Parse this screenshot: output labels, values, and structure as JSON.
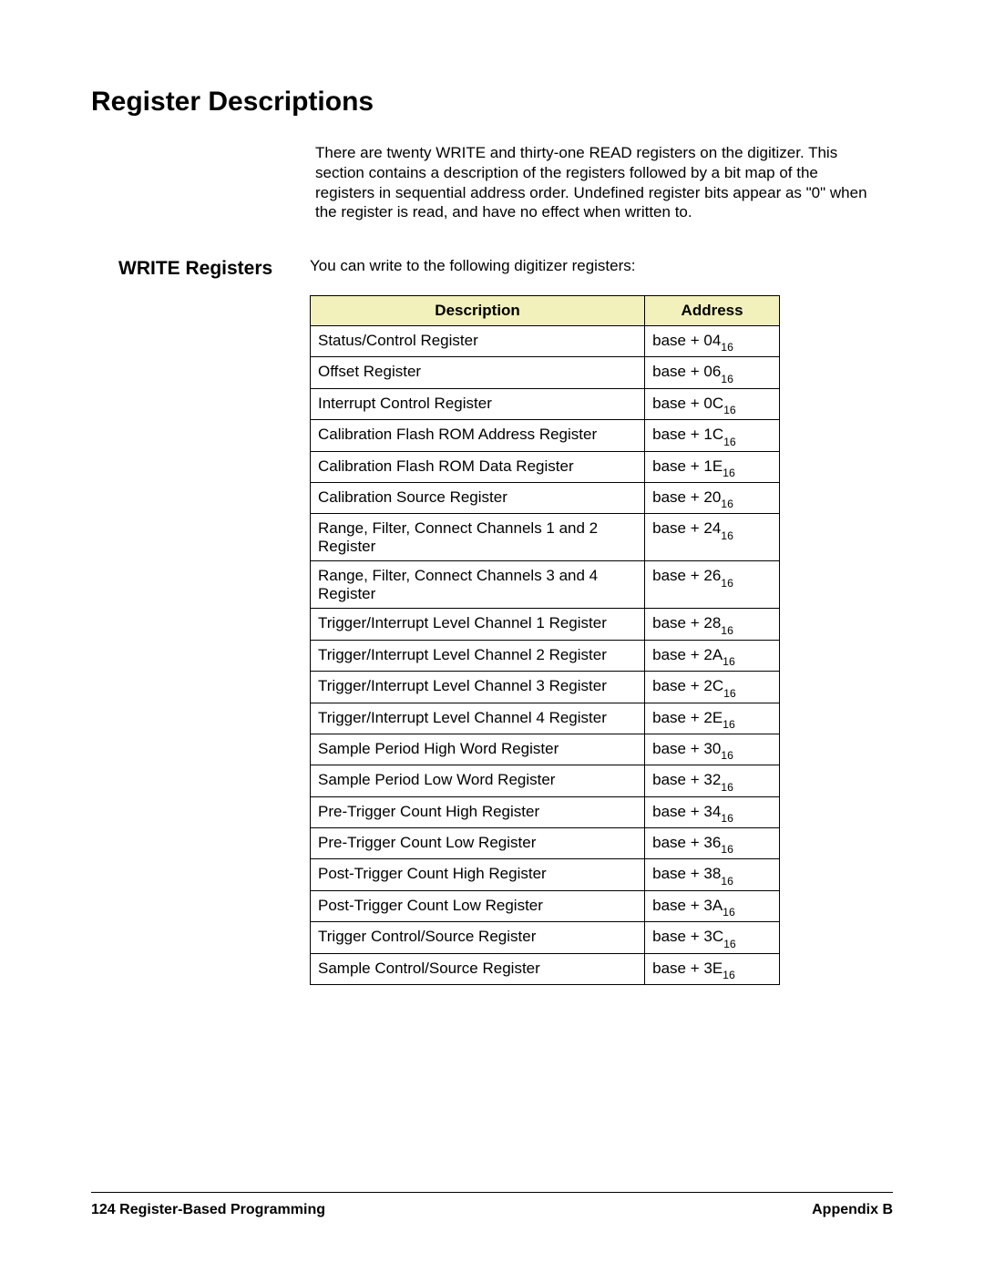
{
  "title": "Register Descriptions",
  "intro": "There are twenty WRITE and thirty-one READ registers on the digitizer. This section contains a description of the registers followed by a bit map of the registers in sequential address order. Undefined register bits appear as \"0\" when the register is read, and have no effect when written to.",
  "section": {
    "label": "WRITE Registers",
    "lead": "You can write to the following digitizer registers:"
  },
  "table": {
    "header_bg": "#f2f0bb",
    "border_color": "#000000",
    "col_desc_width": 368,
    "col_addr_width": 148,
    "columns": [
      "Description",
      "Address"
    ],
    "address_prefix": "base + ",
    "address_subscript": "16",
    "rows": [
      {
        "desc": "Status/Control Register",
        "offset": "04"
      },
      {
        "desc": "Offset Register",
        "offset": "06"
      },
      {
        "desc": "Interrupt Control Register",
        "offset": "0C"
      },
      {
        "desc": "Calibration Flash ROM Address Register",
        "offset": "1C"
      },
      {
        "desc": "Calibration Flash ROM Data Register",
        "offset": "1E"
      },
      {
        "desc": "Calibration Source Register",
        "offset": "20"
      },
      {
        "desc": "Range, Filter, Connect Channels 1 and 2 Register",
        "offset": "24"
      },
      {
        "desc": "Range, Filter, Connect Channels 3 and 4 Register",
        "offset": "26"
      },
      {
        "desc": "Trigger/Interrupt Level Channel 1 Register",
        "offset": "28"
      },
      {
        "desc": "Trigger/Interrupt Level Channel 2 Register",
        "offset": "2A"
      },
      {
        "desc": "Trigger/Interrupt Level Channel 3 Register",
        "offset": "2C"
      },
      {
        "desc": "Trigger/Interrupt Level Channel 4 Register",
        "offset": "2E"
      },
      {
        "desc": "Sample Period High Word Register",
        "offset": "30"
      },
      {
        "desc": "Sample Period Low Word Register",
        "offset": "32"
      },
      {
        "desc": "Pre-Trigger Count High Register",
        "offset": "34"
      },
      {
        "desc": "Pre-Trigger Count Low Register",
        "offset": "36"
      },
      {
        "desc": "Post-Trigger Count High Register",
        "offset": "38"
      },
      {
        "desc": "Post-Trigger Count Low Register",
        "offset": "3A"
      },
      {
        "desc": "Trigger Control/Source Register",
        "offset": "3C"
      },
      {
        "desc": "Sample Control/Source Register",
        "offset": "3E"
      }
    ]
  },
  "footer": {
    "page_number": "124",
    "left_text": "Register-Based Programming",
    "right_text": "Appendix B"
  }
}
